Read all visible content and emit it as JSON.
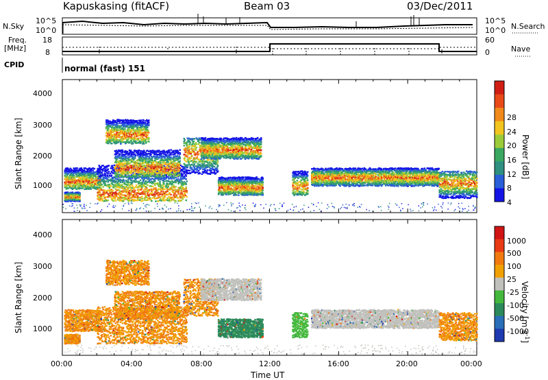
{
  "header": {
    "station": "Kapuskasing (fitACF)",
    "beam": "Beam 03",
    "date": "03/Dec/2011"
  },
  "top_panels": {
    "nsky_label": "N.Sky",
    "nsky_ticks": [
      "10^5",
      "10^0"
    ],
    "nsearch_label": "N.Search",
    "nsearch_ticks": [
      "10^5",
      "10^0"
    ],
    "freq_label": "Freq.",
    "freq_unit": "[MHz]",
    "freq_ticks": [
      "18",
      "8"
    ],
    "nave_label": "Nave",
    "nave_ticks": [
      "60",
      "0"
    ],
    "cpid_label": "CPID",
    "cpid_value": "normal (fast) 151"
  },
  "chart_data": [
    {
      "type": "heatmap",
      "panel": "power",
      "ylabel": "Slant Range [km]",
      "xlabel": "",
      "y_ticks": [
        "1000",
        "2000",
        "3000",
        "4000"
      ],
      "ylim": [
        200,
        4600
      ],
      "colorbar_label": "Power [dB]",
      "colorbar_ticks": [
        "28",
        "24",
        "20",
        "16",
        "12",
        "8",
        "4"
      ],
      "colorscale": [
        "#1414e6",
        "#2a5fd8",
        "#2f8f80",
        "#3aa860",
        "#9ccb3a",
        "#f2c51e",
        "#f08a1a",
        "#e84a18",
        "#d01e14"
      ]
    },
    {
      "type": "heatmap",
      "panel": "velocity",
      "ylabel": "Slant Range [km]",
      "xlabel": "Time UT",
      "x_ticks": [
        "00:00",
        "04:00",
        "08:00",
        "12:00",
        "16:00",
        "20:00",
        "00:00"
      ],
      "y_ticks": [
        "1000",
        "2000",
        "3000",
        "4000"
      ],
      "ylim": [
        200,
        4600
      ],
      "colorbar_label": "Velocity [m s",
      "colorbar_unit_exp": "-1",
      "colorbar_unit_close": "]",
      "colorbar_ticks": [
        "1000",
        "500",
        "100",
        "25",
        "-25",
        "-100",
        "-500",
        "-1000"
      ],
      "colorscale": [
        "#1e3ab0",
        "#2a6fb8",
        "#2c8a5a",
        "#44b83c",
        "#c0c0bc",
        "#f0a000",
        "#f07a10",
        "#e83a14",
        "#d01414"
      ]
    }
  ]
}
